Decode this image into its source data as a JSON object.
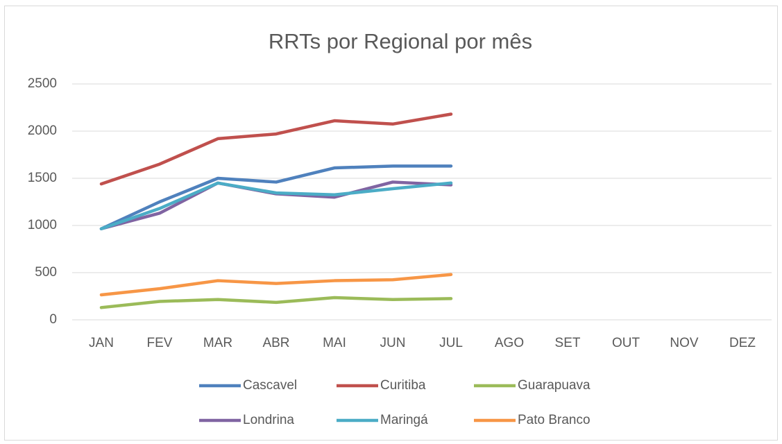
{
  "chart_data": {
    "type": "line",
    "title": "RRTs por Regional por mês",
    "categories": [
      "JAN",
      "FEV",
      "MAR",
      "ABR",
      "MAI",
      "JUN",
      "JUL",
      "AGO",
      "SET",
      "OUT",
      "NOV",
      "DEZ"
    ],
    "series": [
      {
        "name": "Cascavel",
        "color": "#4f81bd",
        "values": [
          965,
          1250,
          1500,
          1460,
          1610,
          1630,
          1630,
          null,
          null,
          null,
          null,
          null
        ]
      },
      {
        "name": "Curitiba",
        "color": "#c0504d",
        "values": [
          1440,
          1650,
          1920,
          1970,
          2110,
          2075,
          2180,
          null,
          null,
          null,
          null,
          null
        ]
      },
      {
        "name": "Guarapuava",
        "color": "#9bbb59",
        "values": [
          130,
          195,
          215,
          185,
          235,
          215,
          225,
          null,
          null,
          null,
          null,
          null
        ]
      },
      {
        "name": "Londrina",
        "color": "#8064a2",
        "values": [
          965,
          1130,
          1450,
          1335,
          1300,
          1460,
          1430,
          null,
          null,
          null,
          null,
          null
        ]
      },
      {
        "name": "Maringá",
        "color": "#4bacc6",
        "values": [
          965,
          1180,
          1450,
          1345,
          1325,
          1390,
          1450,
          null,
          null,
          null,
          null,
          null
        ]
      },
      {
        "name": "Pato Branco",
        "color": "#f79646",
        "values": [
          265,
          330,
          415,
          385,
          415,
          425,
          480,
          null,
          null,
          null,
          null,
          null
        ]
      }
    ],
    "ylim": [
      0,
      2500
    ],
    "yticks": [
      0,
      500,
      1000,
      1500,
      2000,
      2500
    ],
    "grid": true,
    "legend": "bottom"
  }
}
